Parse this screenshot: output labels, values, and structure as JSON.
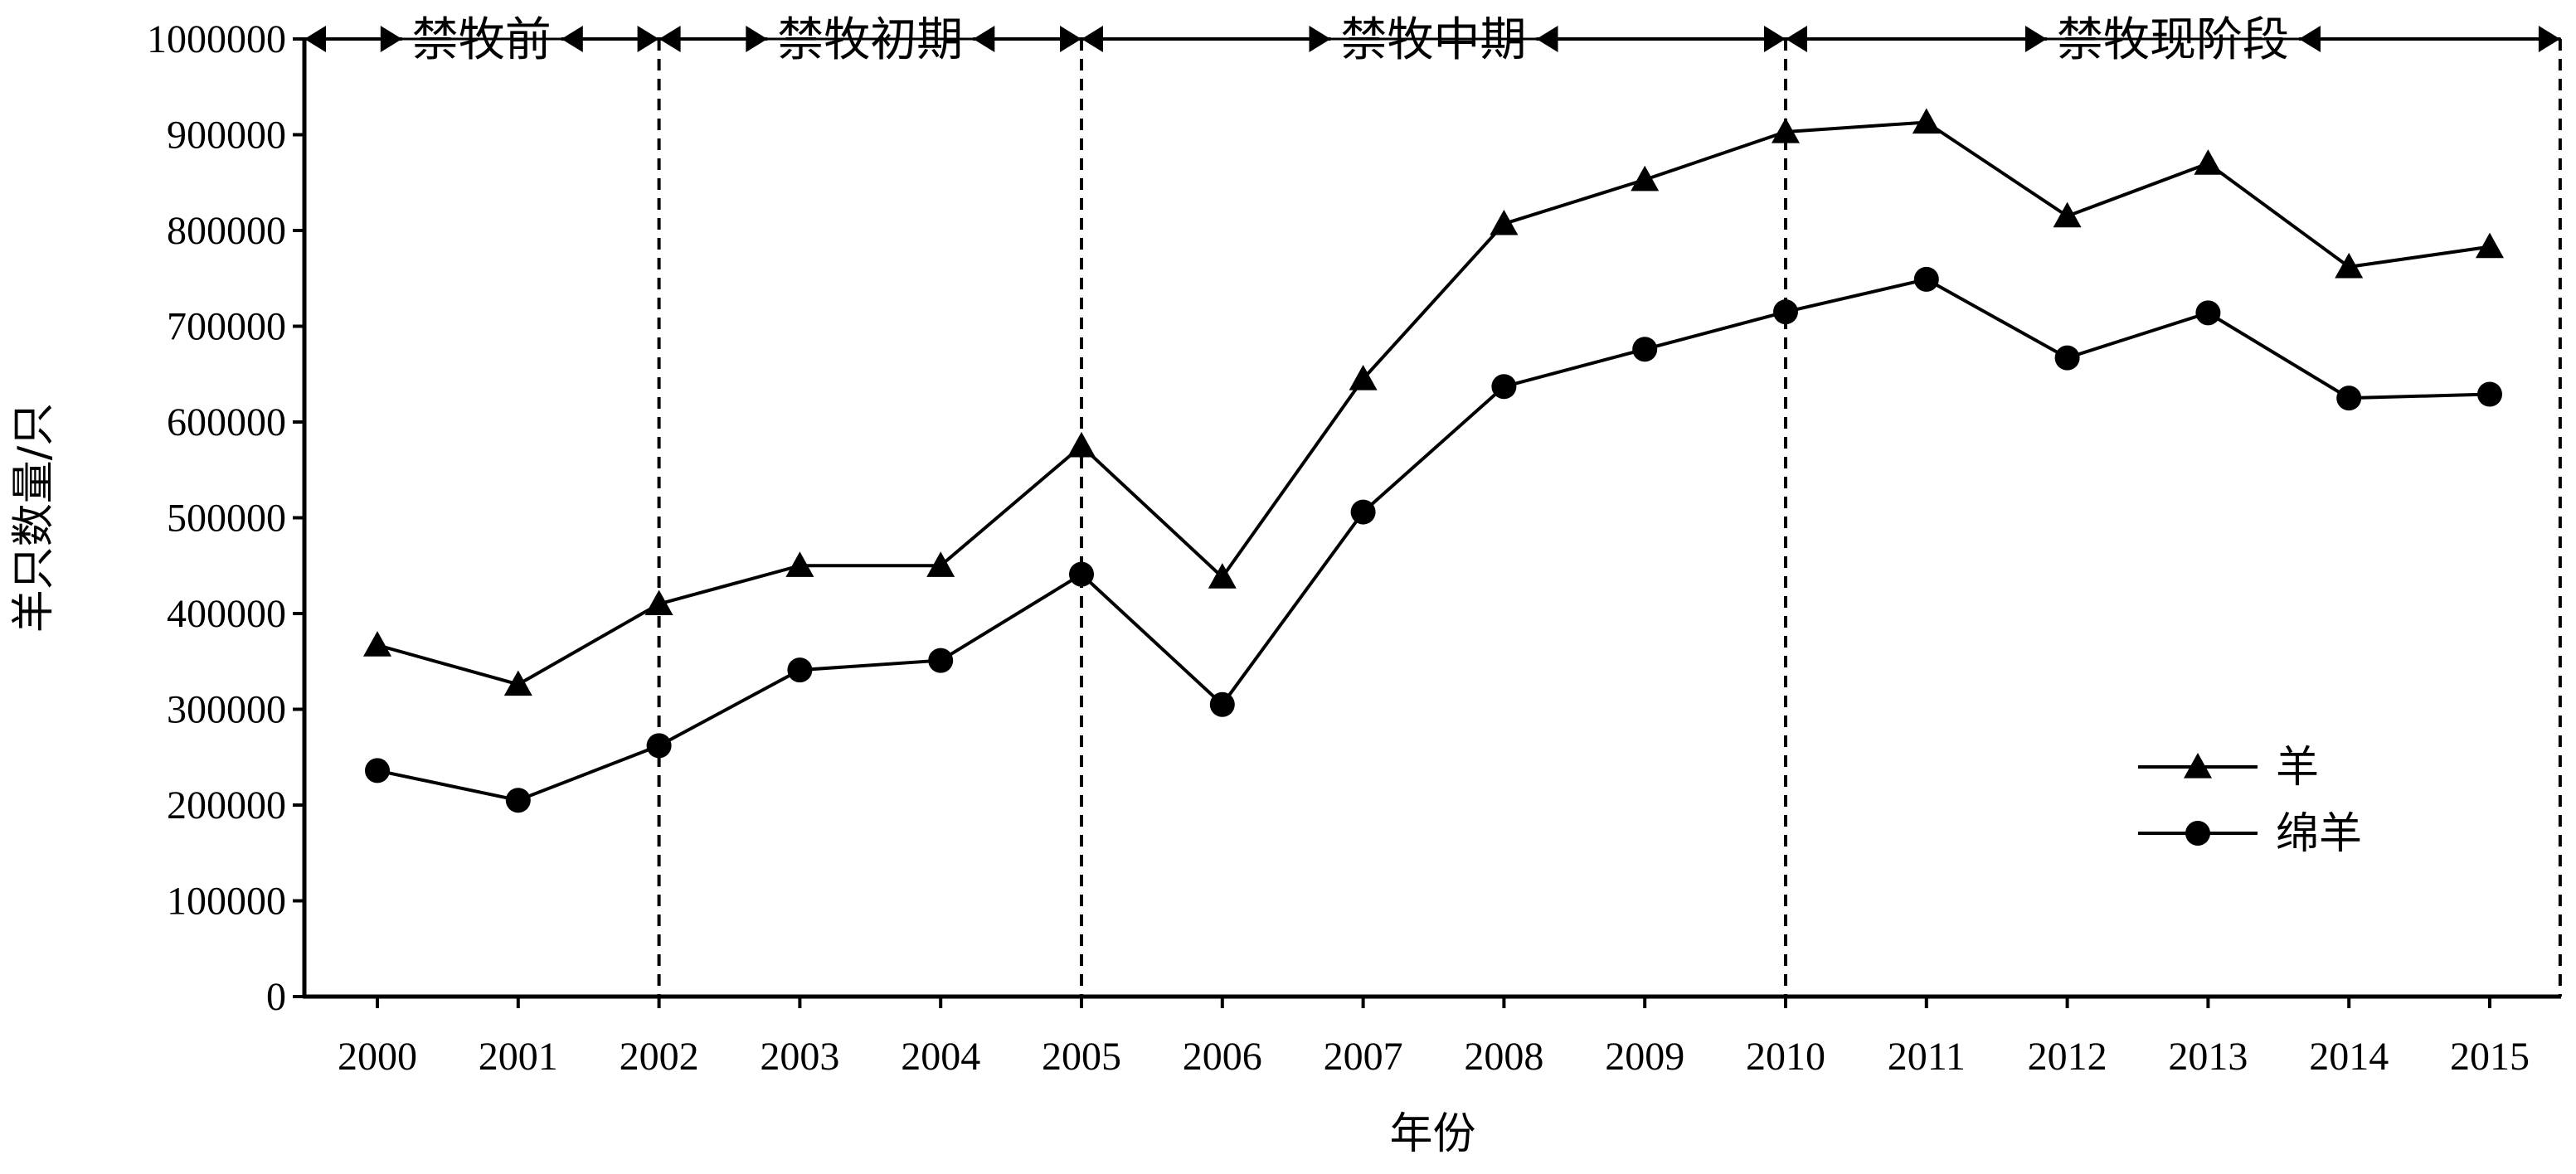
{
  "chart_data": {
    "type": "line",
    "xlabel": "年份",
    "ylabel": "羊只数量/只",
    "x": [
      2000,
      2001,
      2002,
      2003,
      2004,
      2005,
      2006,
      2007,
      2008,
      2009,
      2010,
      2011,
      2012,
      2013,
      2014,
      2015
    ],
    "x_tick_labels": [
      "2000",
      "2001",
      "2002",
      "2003",
      "2004",
      "2005",
      "2006",
      "2007",
      "2008",
      "2009",
      "2010",
      "2011",
      "2012",
      "2013",
      "2014",
      "2015"
    ],
    "y_ticks": [
      0,
      100000,
      200000,
      300000,
      400000,
      500000,
      600000,
      700000,
      800000,
      900000,
      1000000
    ],
    "y_tick_labels": [
      "0",
      "100000",
      "200000",
      "300000",
      "400000",
      "500000",
      "600000",
      "700000",
      "800000",
      "900000",
      "1000000"
    ],
    "ylim": [
      0,
      1000000
    ],
    "xlim": [
      1999.5,
      2015.5
    ],
    "grid": false,
    "legend_position": "right",
    "series": [
      {
        "name": "羊",
        "marker": "triangle",
        "values": [
          367000,
          326000,
          410000,
          450000,
          450000,
          575000,
          438000,
          645000,
          807000,
          853000,
          903000,
          913000,
          815000,
          870000,
          762000,
          783000
        ]
      },
      {
        "name": "绵羊",
        "marker": "circle",
        "values": [
          236000,
          205000,
          262000,
          341000,
          351000,
          441000,
          305000,
          506000,
          637000,
          676000,
          715000,
          749000,
          667000,
          714000,
          625000,
          629000
        ]
      }
    ],
    "phases": [
      {
        "label": "禁牧前",
        "start": 1999.5,
        "end": 2002
      },
      {
        "label": "禁牧初期",
        "start": 2002,
        "end": 2005
      },
      {
        "label": "禁牧中期",
        "start": 2005,
        "end": 2010
      },
      {
        "label": "禁牧现阶段",
        "start": 2010,
        "end": 2015.5
      }
    ],
    "dividers": [
      2002,
      2005,
      2010,
      2015.5
    ]
  }
}
